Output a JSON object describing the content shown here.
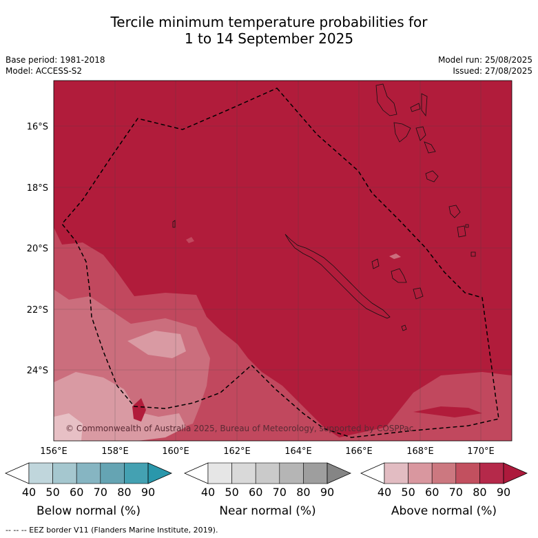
{
  "title": {
    "line1": "Tercile minimum temperature probabilities for",
    "line2": "1 to 14 September 2025"
  },
  "meta_left": {
    "base_period": "Base period: 1981-2018",
    "model": "Model: ACCESS-S2"
  },
  "meta_right": {
    "model_run": "Model run: 25/08/2025",
    "issued": "Issued: 27/08/2025"
  },
  "map": {
    "lat_labels": [
      "16°S",
      "18°S",
      "20°S",
      "22°S",
      "24°S"
    ],
    "lon_labels": [
      "156°E",
      "158°E",
      "160°E",
      "162°E",
      "164°E",
      "166°E",
      "168°E",
      "170°E"
    ],
    "credit": "© Commonwealth of Australia 2025, Bureau of Meteorology, supported by COSPPac",
    "colors": {
      "above_80": "#b11c3b",
      "above_70": "#c1485e",
      "above_60": "#cb6e7d",
      "above_50": "#d99aa3",
      "above_40": "#e7c0c5"
    }
  },
  "colorbars": [
    {
      "title": "Below normal (%)",
      "ticks": [
        "40",
        "50",
        "60",
        "70",
        "80",
        "90"
      ],
      "colors": [
        "#c0d6dc",
        "#a5c7cf",
        "#86b5c2",
        "#65a4b3",
        "#44a1b2",
        "#2a97ab"
      ]
    },
    {
      "title": "Near normal (%)",
      "ticks": [
        "40",
        "50",
        "60",
        "70",
        "80",
        "90"
      ],
      "colors": [
        "#e6e6e6",
        "#d9d9d9",
        "#cacaca",
        "#b5b5b5",
        "#9e9e9e",
        "#858585"
      ]
    },
    {
      "title": "Above normal (%)",
      "ticks": [
        "40",
        "50",
        "60",
        "70",
        "80",
        "90"
      ],
      "colors": [
        "#e2bcc2",
        "#d9979f",
        "#cc7880",
        "#c2505f",
        "#b5294a",
        "#ad1a3c"
      ]
    }
  ],
  "footer": "-- -- -- EEZ border V11 (Flanders Marine Institute, 2019)."
}
